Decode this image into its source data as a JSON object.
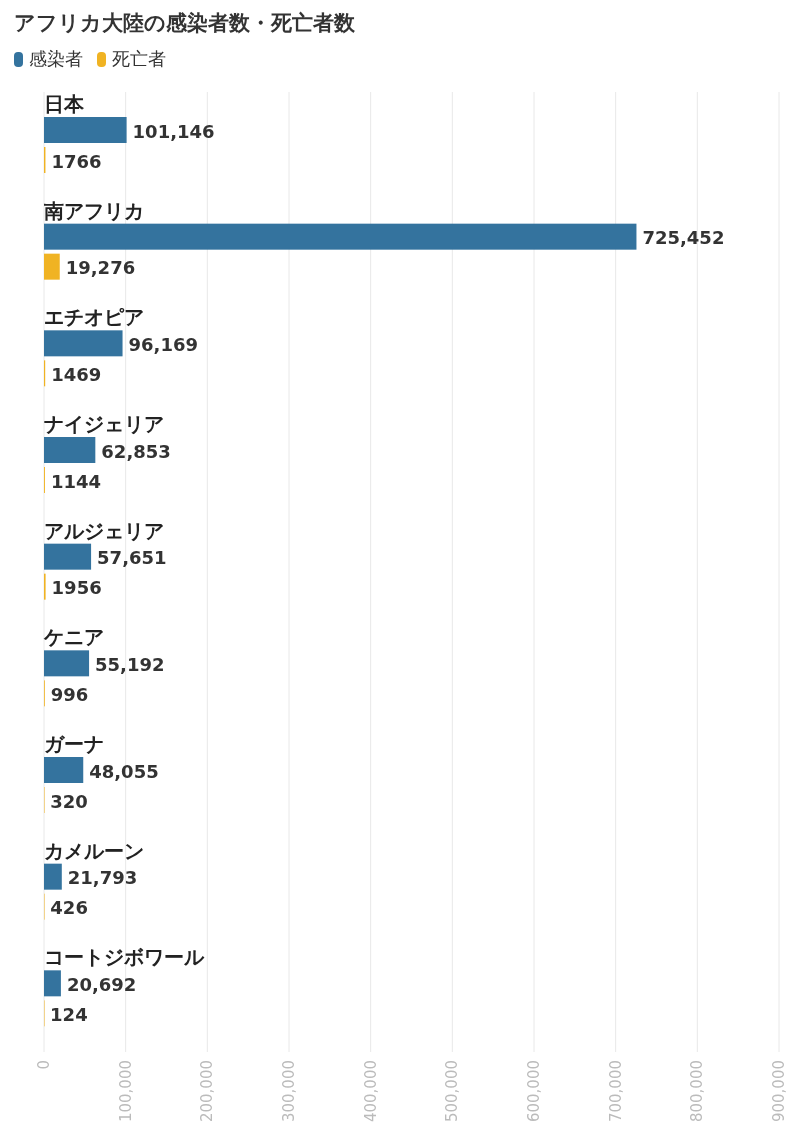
{
  "chart_data": {
    "type": "bar",
    "orientation": "horizontal",
    "title": "アフリカ大陸の感染者数・死亡者数",
    "categories": [
      "日本",
      "南アフリカ",
      "エチオピア",
      "ナイジェリア",
      "アルジェリア",
      "ケニア",
      "ガーナ",
      "カメルーン",
      "コートジボワール"
    ],
    "series": [
      {
        "name": "感染者",
        "color": "#34739e",
        "values": [
          101146,
          725452,
          96169,
          62853,
          57651,
          55192,
          48055,
          21793,
          20692
        ],
        "value_labels": [
          "101,146",
          "725,452",
          "96,169",
          "62,853",
          "57,651",
          "55,192",
          "48,055",
          "21,793",
          "20,692"
        ]
      },
      {
        "name": "死亡者",
        "color": "#f0b323",
        "values": [
          1766,
          19276,
          1469,
          1144,
          1956,
          996,
          320,
          426,
          124
        ],
        "value_labels": [
          "1766",
          "19,276",
          "1469",
          "1144",
          "1956",
          "996",
          "320",
          "426",
          "124"
        ]
      }
    ],
    "xlim": [
      0,
      900000
    ],
    "xticks": [
      0,
      {
        "value": 100000,
        "label": "100,000"
      },
      {
        "value": 200000,
        "label": "200,000"
      },
      {
        "value": 300000,
        "label": "300,000"
      },
      {
        "value": 400000,
        "label": "400,000"
      },
      {
        "value": 500000,
        "label": "500,000"
      },
      {
        "value": 600000,
        "label": "600,000"
      },
      {
        "value": 700000,
        "label": "700,000"
      },
      {
        "value": 800000,
        "label": "800,000"
      },
      {
        "value": 900000,
        "label": "900,000"
      }
    ],
    "grid": "x",
    "legend": "top left"
  }
}
